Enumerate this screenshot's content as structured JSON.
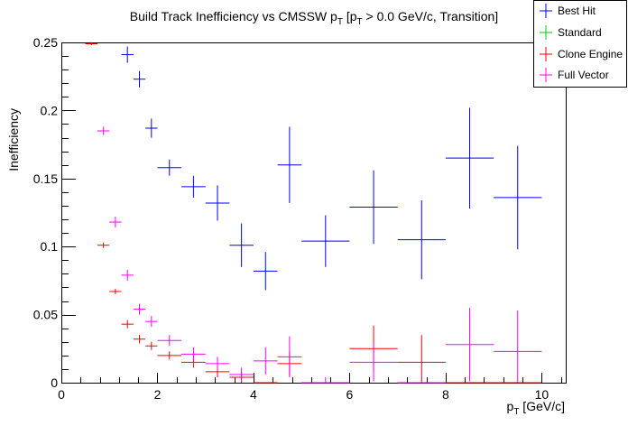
{
  "chart_data": {
    "type": "scatter",
    "title_parts": {
      "main": "Build Track Inefficiency vs CMSSW p",
      "sub1": "T",
      "mid": " [p",
      "sub2": "T",
      "tail": " > 0.0 GeV/c, Transition]"
    },
    "xlabel_parts": {
      "main": "p",
      "sub": "T",
      "tail": " [GeV/c]"
    },
    "ylabel": "Inefficiency",
    "xlim": [
      0,
      10.5
    ],
    "ylim": [
      0,
      0.25
    ],
    "x_ticks": [
      0,
      2,
      4,
      6,
      8,
      10
    ],
    "y_ticks": [
      0,
      0.05,
      0.1,
      0.15,
      0.2,
      0.25
    ],
    "x_tick_labels": [
      "0",
      "2",
      "4",
      "6",
      "8",
      "10"
    ],
    "y_tick_labels": [
      "0",
      "0.05",
      "0.1",
      "0.15",
      "0.2",
      "0.25"
    ],
    "grid": false,
    "legend_position": "top-right",
    "series": [
      {
        "name": "Best Hit",
        "color": "#0000ff",
        "points": [
          {
            "x": 1.375,
            "xerr": 0.125,
            "y": 0.241,
            "yerr": 0.006
          },
          {
            "x": 1.625,
            "xerr": 0.125,
            "y": 0.223,
            "yerr": 0.006
          },
          {
            "x": 1.875,
            "xerr": 0.125,
            "y": 0.187,
            "yerr": 0.007
          },
          {
            "x": 2.25,
            "xerr": 0.25,
            "y": 0.158,
            "yerr": 0.006
          },
          {
            "x": 2.75,
            "xerr": 0.25,
            "y": 0.144,
            "yerr": 0.008
          },
          {
            "x": 3.25,
            "xerr": 0.25,
            "y": 0.132,
            "yerr": 0.013
          },
          {
            "x": 3.75,
            "xerr": 0.25,
            "y": 0.101,
            "yerr": 0.016
          },
          {
            "x": 4.25,
            "xerr": 0.25,
            "y": 0.082,
            "yerr": 0.014
          },
          {
            "x": 4.75,
            "xerr": 0.25,
            "y": 0.16,
            "yerr": 0.028
          },
          {
            "x": 5.5,
            "xerr": 0.5,
            "y": 0.104,
            "yerr": 0.019
          },
          {
            "x": 6.5,
            "xerr": 0.5,
            "y": 0.129,
            "yerr": 0.027
          },
          {
            "x": 7.5,
            "xerr": 0.5,
            "y": 0.105,
            "yerr": 0.029
          },
          {
            "x": 8.5,
            "xerr": 0.5,
            "y": 0.165,
            "yerr": 0.037
          },
          {
            "x": 9.5,
            "xerr": 0.5,
            "y": 0.136,
            "yerr": 0.038
          }
        ]
      },
      {
        "name": "Standard",
        "color": "#00cc00",
        "points": []
      },
      {
        "name": "Clone Engine",
        "color": "#ff0000",
        "points": [
          {
            "x": 0.625,
            "xerr": 0.125,
            "y": 0.249,
            "yerr": 0.001
          },
          {
            "x": 0.875,
            "xerr": 0.125,
            "y": 0.101,
            "yerr": 0.002
          },
          {
            "x": 1.125,
            "xerr": 0.125,
            "y": 0.067,
            "yerr": 0.002
          },
          {
            "x": 1.375,
            "xerr": 0.125,
            "y": 0.043,
            "yerr": 0.003
          },
          {
            "x": 1.625,
            "xerr": 0.125,
            "y": 0.032,
            "yerr": 0.003
          },
          {
            "x": 1.875,
            "xerr": 0.125,
            "y": 0.027,
            "yerr": 0.003
          },
          {
            "x": 2.25,
            "xerr": 0.25,
            "y": 0.02,
            "yerr": 0.003
          },
          {
            "x": 2.75,
            "xerr": 0.25,
            "y": 0.015,
            "yerr": 0.004
          },
          {
            "x": 3.25,
            "xerr": 0.25,
            "y": 0.008,
            "yerr": 0.004
          },
          {
            "x": 3.75,
            "xerr": 0.25,
            "y": 0.004,
            "yerr": 0.004
          },
          {
            "x": 4.25,
            "xerr": 0.25,
            "y": 0.0,
            "yerr": 0.0
          },
          {
            "x": 4.75,
            "xerr": 0.25,
            "y": 0.014,
            "yerr": 0.009
          },
          {
            "x": 5.5,
            "xerr": 0.5,
            "y": 0.0,
            "yerr": 0.0
          },
          {
            "x": 6.5,
            "xerr": 0.5,
            "y": 0.025,
            "yerr": 0.017
          },
          {
            "x": 7.5,
            "xerr": 0.5,
            "y": 0.015,
            "yerr": 0.02
          },
          {
            "x": 8.5,
            "xerr": 0.5,
            "y": 0.0,
            "yerr": 0.0
          },
          {
            "x": 9.5,
            "xerr": 0.5,
            "y": 0.0,
            "yerr": 0.0
          }
        ]
      },
      {
        "name": "Full Vector",
        "color": "#ff00ff",
        "points": [
          {
            "x": 0.875,
            "xerr": 0.125,
            "y": 0.185,
            "yerr": 0.003
          },
          {
            "x": 1.125,
            "xerr": 0.125,
            "y": 0.118,
            "yerr": 0.004
          },
          {
            "x": 1.375,
            "xerr": 0.125,
            "y": 0.079,
            "yerr": 0.004
          },
          {
            "x": 1.625,
            "xerr": 0.125,
            "y": 0.054,
            "yerr": 0.004
          },
          {
            "x": 1.875,
            "xerr": 0.125,
            "y": 0.045,
            "yerr": 0.004
          },
          {
            "x": 2.25,
            "xerr": 0.25,
            "y": 0.031,
            "yerr": 0.004
          },
          {
            "x": 2.75,
            "xerr": 0.25,
            "y": 0.021,
            "yerr": 0.005
          },
          {
            "x": 3.25,
            "xerr": 0.25,
            "y": 0.014,
            "yerr": 0.005
          },
          {
            "x": 3.75,
            "xerr": 0.25,
            "y": 0.006,
            "yerr": 0.005
          },
          {
            "x": 4.25,
            "xerr": 0.25,
            "y": 0.016,
            "yerr": 0.01
          },
          {
            "x": 4.75,
            "xerr": 0.25,
            "y": 0.019,
            "yerr": 0.015
          },
          {
            "x": 5.5,
            "xerr": 0.5,
            "y": 0.0,
            "yerr": 0.004
          },
          {
            "x": 6.5,
            "xerr": 0.5,
            "y": 0.015,
            "yerr": 0.014
          },
          {
            "x": 7.5,
            "xerr": 0.5,
            "y": 0.0,
            "yerr": 0.0
          },
          {
            "x": 8.5,
            "xerr": 0.5,
            "y": 0.028,
            "yerr": 0.027
          },
          {
            "x": 9.5,
            "xerr": 0.5,
            "y": 0.023,
            "yerr": 0.03
          }
        ]
      }
    ]
  }
}
